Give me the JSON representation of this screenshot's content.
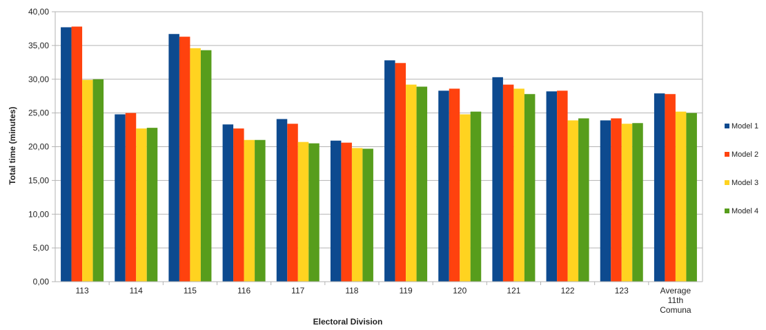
{
  "chart_data": {
    "type": "bar",
    "title": "",
    "xlabel": "Electoral Division",
    "ylabel": "Total time (minutes)",
    "ylim": [
      0,
      40
    ],
    "ytick_step": 5,
    "ytick_labels": [
      "0,00",
      "5,00",
      "10,00",
      "15,00",
      "20,00",
      "25,00",
      "30,00",
      "35,00",
      "40,00"
    ],
    "grid": true,
    "legend_position": "right",
    "categories": [
      [
        "113"
      ],
      [
        "114"
      ],
      [
        "115"
      ],
      [
        "116"
      ],
      [
        "117"
      ],
      [
        "118"
      ],
      [
        "119"
      ],
      [
        "120"
      ],
      [
        "121"
      ],
      [
        "122"
      ],
      [
        "123"
      ],
      [
        "Average",
        "11th",
        "Comuna"
      ]
    ],
    "series": [
      {
        "name": "Model 1",
        "color": "#0d4a8f",
        "values": [
          37.7,
          24.8,
          36.7,
          23.3,
          24.1,
          20.9,
          32.8,
          28.3,
          30.3,
          28.2,
          23.9,
          27.9
        ]
      },
      {
        "name": "Model 2",
        "color": "#ff420e",
        "values": [
          37.8,
          25.0,
          36.3,
          22.7,
          23.4,
          20.6,
          32.4,
          28.6,
          29.2,
          28.3,
          24.2,
          27.8
        ]
      },
      {
        "name": "Model 3",
        "color": "#ffd320",
        "values": [
          29.9,
          22.7,
          34.6,
          21.0,
          20.7,
          19.8,
          29.2,
          24.8,
          28.6,
          23.9,
          23.4,
          25.2
        ]
      },
      {
        "name": "Model 4",
        "color": "#579d1c",
        "values": [
          30.0,
          22.8,
          34.3,
          21.0,
          20.5,
          19.7,
          28.9,
          25.2,
          27.8,
          24.2,
          23.5,
          25.0
        ]
      }
    ]
  },
  "colors": {
    "grid": "#b3b3b3",
    "axis": "#b3b3b3",
    "text": "#222222"
  }
}
